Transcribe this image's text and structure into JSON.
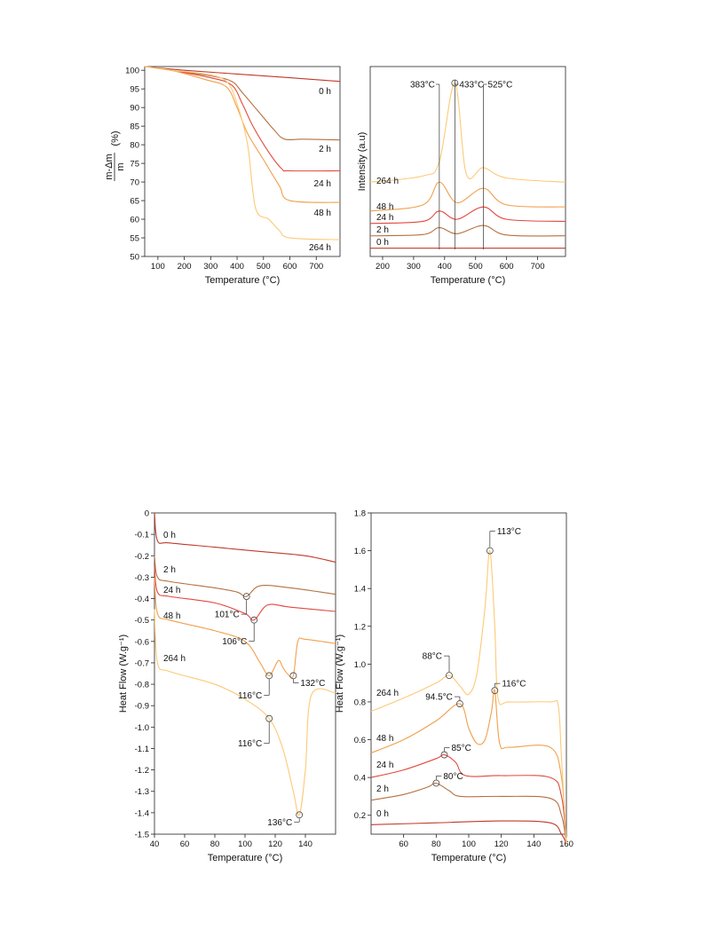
{
  "chart_data": [
    {
      "type": "line",
      "xlabel": "Temperature (°C)",
      "ylabel_numerator": "m-Δm",
      "ylabel_denominator": "m",
      "ylabel_unit": "(%)",
      "xlim": [
        50,
        790
      ],
      "ylim": [
        50,
        101
      ],
      "x_ticks": [
        100,
        200,
        300,
        400,
        500,
        600,
        700
      ],
      "y_ticks": [
        50,
        55,
        60,
        65,
        70,
        75,
        80,
        85,
        90,
        95,
        100
      ],
      "series": [
        {
          "name": "0 h",
          "color": "#c0392b",
          "x": [
            50,
            200,
            400,
            600,
            790
          ],
          "y": [
            101,
            100,
            99,
            98,
            97
          ]
        },
        {
          "name": "2 h",
          "color": "#b5703f",
          "x": [
            50,
            150,
            300,
            380,
            420,
            480,
            540,
            580,
            650,
            790
          ],
          "y": [
            101,
            100,
            98.5,
            97,
            94,
            89,
            84,
            81.5,
            81.5,
            81.3
          ]
        },
        {
          "name": "24 h",
          "color": "#e2483d",
          "x": [
            50,
            150,
            300,
            380,
            420,
            460,
            520,
            570,
            600,
            790
          ],
          "y": [
            101,
            100,
            98,
            96,
            91,
            85,
            78,
            73.5,
            73,
            73
          ]
        },
        {
          "name": "48 h",
          "color": "#f0a04b",
          "x": [
            50,
            150,
            280,
            360,
            400,
            440,
            500,
            560,
            600,
            790
          ],
          "y": [
            101,
            100,
            97.5,
            95.5,
            90,
            83,
            76,
            69,
            65,
            64.5
          ]
        },
        {
          "name": "264 h",
          "color": "#fcc977",
          "x": [
            50,
            150,
            280,
            360,
            400,
            440,
            470,
            520,
            560,
            600,
            790
          ],
          "y": [
            101,
            100,
            99,
            97,
            91,
            80,
            63,
            60,
            57,
            55,
            54.5
          ]
        }
      ]
    },
    {
      "type": "line",
      "xlabel": "Temperature (°C)",
      "ylabel": "Intensity (a.u)",
      "xlim": [
        160,
        790
      ],
      "x_ticks": [
        200,
        300,
        400,
        500,
        600,
        700
      ],
      "series": [
        {
          "name": "0 h",
          "color": "#c0392b",
          "x": [
            160,
            790
          ],
          "y": [
            0,
            0
          ]
        },
        {
          "name": "2 h",
          "color": "#b5703f",
          "x": [
            160,
            330,
            383,
            440,
            525,
            600,
            790
          ],
          "y": [
            3,
            3.3,
            5,
            3.5,
            5.5,
            3.2,
            3
          ]
        },
        {
          "name": "24 h",
          "color": "#e2483d",
          "x": [
            160,
            330,
            383,
            440,
            525,
            600,
            790
          ],
          "y": [
            6,
            6.5,
            9,
            7,
            10,
            7,
            6.5
          ]
        },
        {
          "name": "48 h",
          "color": "#f0a04b",
          "x": [
            160,
            330,
            383,
            440,
            525,
            600,
            790
          ],
          "y": [
            9,
            10.5,
            16,
            11,
            14.5,
            10.5,
            10
          ]
        },
        {
          "name": "264 h",
          "color": "#fcc977",
          "x": [
            160,
            330,
            383,
            433,
            470,
            525,
            600,
            790
          ],
          "y": [
            16,
            17.5,
            21,
            40,
            18,
            19.5,
            17,
            16
          ]
        }
      ],
      "annotations": [
        {
          "label": "383°C",
          "x": 383
        },
        {
          "label": "433°C",
          "x": 433
        },
        {
          "label": "525°C",
          "x": 525
        }
      ]
    },
    {
      "type": "line",
      "xlabel": "Temperature (°C)",
      "ylabel": "Heat Flow (W.g⁻¹)",
      "xlim": [
        40,
        160
      ],
      "ylim": [
        -1.5,
        0
      ],
      "x_ticks": [
        40,
        60,
        80,
        100,
        120,
        140
      ],
      "y_ticks": [
        0,
        -0.1,
        -0.2,
        -0.3,
        -0.4,
        -0.5,
        -0.6,
        -0.7,
        -0.8,
        -0.9,
        -1.0,
        -1.1,
        -1.2,
        -1.3,
        -1.4,
        -1.5
      ],
      "y_tick_labels": [
        "0",
        "-0.1",
        "-0.2",
        "-0.3",
        "-0.4",
        "-0.5",
        "-0.6",
        "-0.7",
        "-0.8",
        "-0.9",
        "-1.0",
        "-1.1",
        "-1.2",
        "-1.3",
        "-1.4",
        "-1.5"
      ],
      "series": [
        {
          "name": "0 h",
          "color": "#c0392b",
          "x": [
            40,
            42,
            50,
            80,
            110,
            140,
            160
          ],
          "y": [
            0,
            -0.13,
            -0.14,
            -0.16,
            -0.18,
            -0.2,
            -0.23
          ]
        },
        {
          "name": "2 h",
          "color": "#b5703f",
          "x": [
            40,
            42,
            50,
            80,
            95,
            101,
            110,
            130,
            160
          ],
          "y": [
            -0.2,
            -0.3,
            -0.32,
            -0.35,
            -0.37,
            -0.39,
            -0.34,
            -0.35,
            -0.38
          ]
        },
        {
          "name": "24 h",
          "color": "#e2483d",
          "x": [
            40,
            42,
            50,
            80,
            100,
            106,
            115,
            130,
            160
          ],
          "y": [
            -0.25,
            -0.37,
            -0.39,
            -0.42,
            -0.47,
            -0.5,
            -0.43,
            -0.44,
            -0.46
          ]
        },
        {
          "name": "48 h",
          "color": "#f0a04b",
          "x": [
            40,
            42,
            50,
            80,
            100,
            110,
            116,
            122,
            125,
            128,
            132,
            135,
            140,
            160
          ],
          "y": [
            -0.3,
            -0.47,
            -0.5,
            -0.55,
            -0.6,
            -0.7,
            -0.76,
            -0.69,
            -0.72,
            -0.75,
            -0.76,
            -0.6,
            -0.59,
            -0.61
          ]
        },
        {
          "name": "264 h",
          "color": "#fcc977",
          "x": [
            40,
            42,
            50,
            80,
            100,
            116,
            125,
            132,
            136,
            140,
            144,
            160
          ],
          "y": [
            -0.45,
            -0.7,
            -0.74,
            -0.8,
            -0.87,
            -0.96,
            -1.1,
            -1.3,
            -1.41,
            -1.2,
            -0.85,
            -0.84
          ]
        }
      ],
      "annotations": [
        {
          "label": "101°C",
          "x": 101,
          "y": -0.39
        },
        {
          "label": "106°C",
          "x": 106,
          "y": -0.5
        },
        {
          "label": "116°C",
          "x": 116,
          "y": -0.76
        },
        {
          "label": "132°C",
          "x": 132,
          "y": -0.76
        },
        {
          "label": "116°C",
          "x": 116,
          "y": -0.96
        },
        {
          "label": "136°C",
          "x": 136,
          "y": -1.41
        }
      ]
    },
    {
      "type": "line",
      "xlabel": "Temperature (°C)",
      "ylabel": "Heat Flow (W.g⁻¹)",
      "xlim": [
        40,
        160
      ],
      "ylim": [
        0.1,
        1.8
      ],
      "x_ticks": [
        60,
        80,
        100,
        120,
        140,
        160
      ],
      "y_ticks": [
        0.2,
        0.4,
        0.6,
        0.8,
        1.0,
        1.2,
        1.4,
        1.6,
        1.8
      ],
      "y_tick_labels": [
        "0.2",
        "0.4",
        "0.6",
        "0.8",
        "1.0",
        "1.2",
        "1.4",
        "1.6",
        "1.8"
      ],
      "series": [
        {
          "name": "0 h",
          "color": "#c0392b",
          "x": [
            40,
            80,
            120,
            150,
            157,
            160
          ],
          "y": [
            0.15,
            0.16,
            0.17,
            0.16,
            0.1,
            0.05
          ]
        },
        {
          "name": "2 h",
          "color": "#b5703f",
          "x": [
            40,
            60,
            75,
            80,
            88,
            95,
            120,
            150,
            157,
            160
          ],
          "y": [
            0.28,
            0.31,
            0.35,
            0.37,
            0.33,
            0.3,
            0.3,
            0.29,
            0.2,
            0.05
          ]
        },
        {
          "name": "24 h",
          "color": "#e2483d",
          "x": [
            40,
            60,
            80,
            85,
            92,
            98,
            120,
            150,
            157,
            160
          ],
          "y": [
            0.4,
            0.44,
            0.5,
            0.52,
            0.48,
            0.41,
            0.41,
            0.4,
            0.3,
            0.05
          ]
        },
        {
          "name": "48 h",
          "color": "#f0a04b",
          "x": [
            40,
            60,
            80,
            94.5,
            100,
            105,
            110,
            114,
            116,
            119,
            125,
            150,
            157,
            160
          ],
          "y": [
            0.53,
            0.6,
            0.7,
            0.79,
            0.66,
            0.58,
            0.6,
            0.75,
            0.86,
            0.58,
            0.56,
            0.56,
            0.4,
            0.05
          ]
        },
        {
          "name": "264 h",
          "color": "#fcc977",
          "x": [
            40,
            60,
            80,
            88,
            95,
            100,
            105,
            110,
            113,
            116,
            118,
            125,
            150,
            155,
            157,
            160
          ],
          "y": [
            0.75,
            0.82,
            0.9,
            0.94,
            0.88,
            0.84,
            0.95,
            1.3,
            1.6,
            1.2,
            0.82,
            0.8,
            0.8,
            0.78,
            0.5,
            0.05
          ]
        }
      ],
      "annotations": [
        {
          "label": "113°C",
          "x": 113,
          "y": 1.6
        },
        {
          "label": "88°C",
          "x": 88,
          "y": 0.94
        },
        {
          "label": "116°C",
          "x": 116,
          "y": 0.86
        },
        {
          "label": "94.5°C",
          "x": 94.5,
          "y": 0.79
        },
        {
          "label": "85°C",
          "x": 85,
          "y": 0.52
        },
        {
          "label": "80°C",
          "x": 80,
          "y": 0.37
        }
      ]
    }
  ]
}
